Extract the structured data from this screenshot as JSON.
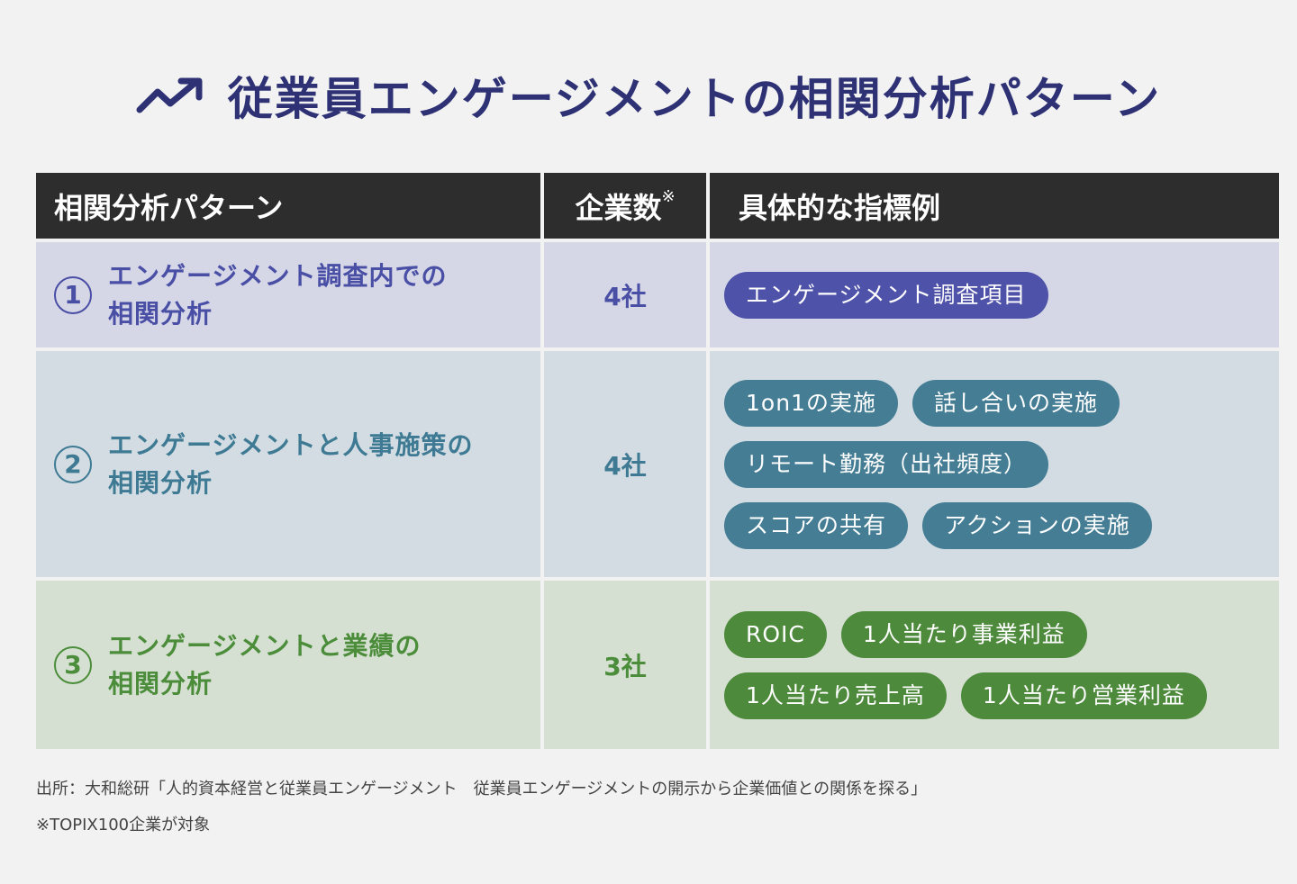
{
  "title": "従業員エンゲージメントの相関分析パターン",
  "headers": {
    "pattern": "相関分析パターン",
    "count": "企業数",
    "count_mark": "※",
    "examples": "具体的な指標例"
  },
  "rows": [
    {
      "number": "1",
      "pattern_line1": "エンゲージメント調査内での",
      "pattern_line2": "相関分析",
      "count": "4社",
      "tags": [
        [
          "エンゲージメント調査項目"
        ]
      ],
      "color": "#4e52a8"
    },
    {
      "number": "2",
      "pattern_line1": "エンゲージメントと人事施策の",
      "pattern_line2": "相関分析",
      "count": "4社",
      "tags": [
        [
          "1on1の実施",
          "話し合いの実施"
        ],
        [
          "リモート勤務（出社頻度）"
        ],
        [
          "スコアの共有",
          "アクションの実施"
        ]
      ],
      "color": "#447d94"
    },
    {
      "number": "3",
      "pattern_line1": "エンゲージメントと業績の",
      "pattern_line2": "相関分析",
      "count": "3社",
      "tags": [
        [
          "ROIC",
          "1人当たり事業利益"
        ],
        [
          "1人当たり売上高",
          "1人当たり営業利益"
        ]
      ],
      "color": "#4d8a3c"
    }
  ],
  "footnotes": {
    "source": "出所：大和総研「人的資本経営と従業員エンゲージメント　従業員エンゲージメントの開示から企業価値との関係を探る」",
    "note": "※TOPIX100企業が対象"
  },
  "icons": {
    "title_icon": "trending-up-icon"
  }
}
